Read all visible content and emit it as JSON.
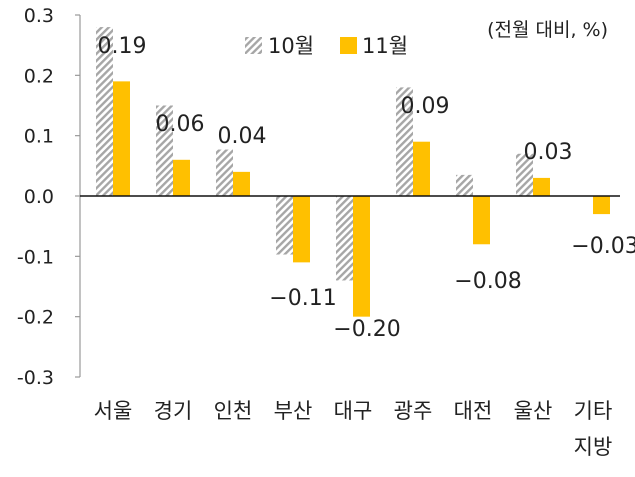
{
  "chart_data": {
    "type": "bar",
    "unit_note": "(전월 대비, %)",
    "categories": [
      [
        "서울"
      ],
      [
        "경기"
      ],
      [
        "인천"
      ],
      [
        "부산"
      ],
      [
        "대구"
      ],
      [
        "광주"
      ],
      [
        "대전"
      ],
      [
        "울산"
      ],
      [
        "기타",
        "지방"
      ]
    ],
    "series": [
      {
        "name": "10월",
        "pattern": "hatched",
        "color": "#a6a6a6",
        "values": [
          0.28,
          0.15,
          0.077,
          -0.097,
          -0.14,
          0.18,
          0.035,
          0.07,
          0.0
        ]
      },
      {
        "name": "11월",
        "pattern": "solid",
        "color": "#ffc000",
        "values": [
          0.19,
          0.06,
          0.04,
          -0.11,
          -0.2,
          0.09,
          -0.08,
          0.03,
          -0.03
        ]
      }
    ],
    "data_labels": [
      "0.19",
      "0.06",
      "0.04",
      "−0.11",
      "−0.20",
      "0.09",
      "−0.08",
      "0.03",
      "−0.03"
    ],
    "y_ticks": [
      "0.3",
      "0.2",
      "0.1",
      "0.0",
      "-0.1",
      "-0.2",
      "-0.3"
    ],
    "ylim": [
      -0.3,
      0.3
    ],
    "grid": false,
    "legend_position": "top-center"
  }
}
